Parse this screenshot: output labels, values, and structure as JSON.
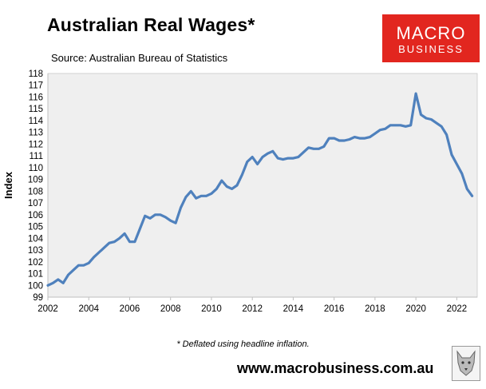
{
  "header": {
    "title": "Australian Real Wages*",
    "subtitle": "Source: Australian Bureau of Statistics"
  },
  "logo": {
    "line1": "MACRO",
    "line2": "BUSINESS",
    "color": "#e2261f"
  },
  "footer": {
    "footnote": "* Deflated using headline inflation.",
    "website": "www.macrobusiness.com.au"
  },
  "chart_data": {
    "type": "line",
    "ylabel": "Index",
    "xlabel": "",
    "xlim": [
      2002,
      2023
    ],
    "ylim": [
      99,
      118
    ],
    "x_ticks": [
      "2002",
      "2004",
      "2006",
      "2008",
      "2010",
      "2012",
      "2014",
      "2016",
      "2018",
      "2020",
      "2022"
    ],
    "y_ticks": [
      "99",
      "100",
      "101",
      "102",
      "103",
      "104",
      "105",
      "106",
      "107",
      "108",
      "109",
      "110",
      "111",
      "112",
      "113",
      "114",
      "115",
      "116",
      "117",
      "118"
    ],
    "grid": false,
    "background": "#efefef",
    "line_color": "#4f81bd",
    "series": [
      {
        "x": [
          2002.0,
          2002.25,
          2002.5,
          2002.75,
          2003.0,
          2003.25,
          2003.5,
          2003.75,
          2004.0,
          2004.25,
          2004.5,
          2004.75,
          2005.0,
          2005.25,
          2005.5,
          2005.75,
          2006.0,
          2006.25,
          2006.5,
          2006.75,
          2007.0,
          2007.25,
          2007.5,
          2007.75,
          2008.0,
          2008.25,
          2008.5,
          2008.75,
          2009.0,
          2009.25,
          2009.5,
          2009.75,
          2010.0,
          2010.25,
          2010.5,
          2010.75,
          2011.0,
          2011.25,
          2011.5,
          2011.75,
          2012.0,
          2012.25,
          2012.5,
          2012.75,
          2013.0,
          2013.25,
          2013.5,
          2013.75,
          2014.0,
          2014.25,
          2014.5,
          2014.75,
          2015.0,
          2015.25,
          2015.5,
          2015.75,
          2016.0,
          2016.25,
          2016.5,
          2016.75,
          2017.0,
          2017.25,
          2017.5,
          2017.75,
          2018.0,
          2018.25,
          2018.5,
          2018.75,
          2019.0,
          2019.25,
          2019.5,
          2019.75,
          2020.0,
          2020.25,
          2020.5,
          2020.75,
          2021.0,
          2021.25,
          2021.5,
          2021.75,
          2022.0,
          2022.25,
          2022.5,
          2022.75
        ],
        "values": [
          100.0,
          100.2,
          100.5,
          100.2,
          100.9,
          101.3,
          101.7,
          101.7,
          101.9,
          102.4,
          102.8,
          103.2,
          103.6,
          103.7,
          104.0,
          104.4,
          103.7,
          103.7,
          104.8,
          105.9,
          105.7,
          106.0,
          106.0,
          105.8,
          105.5,
          105.3,
          106.6,
          107.5,
          108.0,
          107.4,
          107.6,
          107.6,
          107.8,
          108.2,
          108.9,
          108.4,
          108.2,
          108.5,
          109.4,
          110.5,
          110.9,
          110.3,
          110.9,
          111.2,
          111.4,
          110.8,
          110.7,
          110.8,
          110.8,
          110.9,
          111.3,
          111.7,
          111.6,
          111.6,
          111.8,
          112.5,
          112.5,
          112.3,
          112.3,
          112.4,
          112.6,
          112.5,
          112.5,
          112.6,
          112.9,
          113.2,
          113.3,
          113.6,
          113.6,
          113.6,
          113.5,
          113.6,
          116.3,
          114.5,
          114.2,
          114.1,
          113.8,
          113.5,
          112.8,
          111.1,
          110.3,
          109.5,
          108.2,
          107.6
        ]
      }
    ]
  }
}
